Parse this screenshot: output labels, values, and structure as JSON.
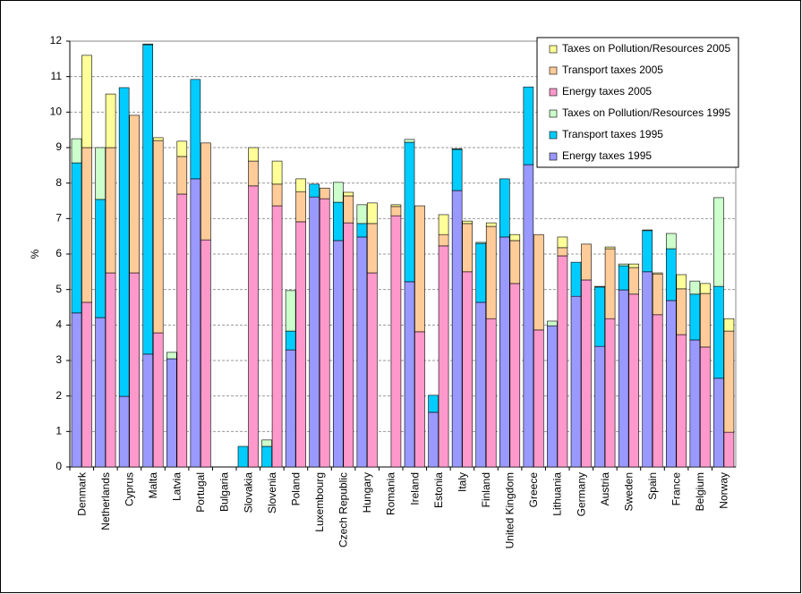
{
  "chart_data": {
    "type": "bar",
    "y_label": "%",
    "categories": [
      "Denmark",
      "Netherlands",
      "Cyprus",
      "Malta",
      "Latvia",
      "Portugal",
      "Bulgaria",
      "Slovakia",
      "Slovenia",
      "Poland",
      "Luxembourg",
      "Czech Republic",
      "Hungary",
      "Romania",
      "Ireland",
      "Estonia",
      "Italy",
      "Finland",
      "United Kingdom",
      "Greece",
      "Lithuania",
      "Germany",
      "Austria",
      "Sweden",
      "Spain",
      "France",
      "Belgium",
      "Norway"
    ],
    "series": [
      {
        "name": "Taxes on Pollution/Resources 2005",
        "color": "#ffff99",
        "values": [
          2.6,
          1.51,
          0,
          0.08,
          0.43,
          0,
          null,
          0.38,
          0.65,
          0.36,
          0,
          0.1,
          0.58,
          0.05,
          0,
          0.56,
          0.07,
          0.1,
          0.17,
          0,
          0.3,
          0,
          0.05,
          0.1,
          0.03,
          0.4,
          0.28,
          0.35
        ]
      },
      {
        "name": "Transport taxes 2005",
        "color": "#ffcc99",
        "values": [
          4.36,
          3.53,
          4.44,
          5.42,
          1.06,
          2.73,
          null,
          0.7,
          0.61,
          0.85,
          0.3,
          0.76,
          1.39,
          0.26,
          3.55,
          0.32,
          1.36,
          2.6,
          1.21,
          2.69,
          0.23,
          1.01,
          1.97,
          0.75,
          1.15,
          1.29,
          1.51,
          2.85
        ]
      },
      {
        "name": "Energy taxes 2005",
        "color": "#ff99cc",
        "values": [
          4.64,
          5.47,
          5.47,
          3.78,
          7.69,
          6.4,
          null,
          7.92,
          7.36,
          6.91,
          7.56,
          6.88,
          5.47,
          7.08,
          3.81,
          6.23,
          5.5,
          4.18,
          5.17,
          3.86,
          5.95,
          5.27,
          4.18,
          4.87,
          4.29,
          3.73,
          3.38,
          0.98
        ]
      },
      {
        "name": "Taxes on Pollution/Resources 1995",
        "color": "#ccffcc",
        "values": [
          0.68,
          1.46,
          0,
          0.02,
          0.18,
          0,
          null,
          0,
          0.18,
          1.14,
          0,
          0.56,
          0.53,
          null,
          0.08,
          0,
          0.02,
          0.03,
          0,
          0,
          0.13,
          0,
          0.02,
          0.05,
          0.02,
          0.43,
          0.37,
          2.5
        ]
      },
      {
        "name": "Transport taxes 1995",
        "color": "#00ccff",
        "values": [
          4.23,
          3.33,
          8.7,
          8.72,
          0,
          2.8,
          null,
          0.58,
          0.58,
          0.53,
          0.36,
          1.08,
          0.38,
          null,
          3.93,
          0.48,
          1.16,
          1.66,
          1.64,
          2.19,
          0,
          0.96,
          1.67,
          0.68,
          1.16,
          1.46,
          1.29,
          2.59
        ]
      },
      {
        "name": "Energy taxes 1995",
        "color": "#9999ff",
        "values": [
          4.34,
          4.21,
          1.99,
          3.18,
          3.05,
          8.12,
          null,
          0,
          0,
          3.3,
          7.61,
          6.38,
          6.48,
          null,
          5.22,
          1.54,
          7.79,
          4.64,
          6.48,
          8.52,
          3.98,
          4.81,
          3.4,
          4.99,
          5.5,
          4.69,
          3.58,
          2.5
        ]
      }
    ],
    "ylim": [
      0,
      12
    ],
    "yticks": [
      0,
      1,
      2,
      3,
      4,
      5,
      6,
      7,
      8,
      9,
      10,
      11,
      12
    ],
    "grid": true,
    "legend": "top-right"
  }
}
